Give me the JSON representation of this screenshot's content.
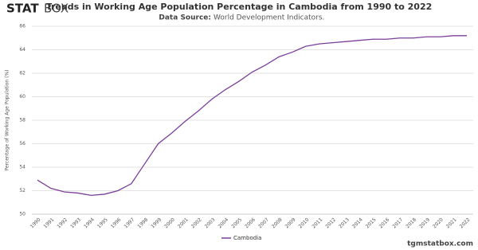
{
  "logo": {
    "bold": "STAT",
    "light": "BOX"
  },
  "footer": "tgmstatbox.com",
  "chart_data": {
    "type": "line",
    "title": "Trends in Working Age Population Percentage in Cambodia from 1990 to 2022",
    "subtitle_label": "Data Source:",
    "subtitle": "World Development Indicators.",
    "y_label": "Percentage of Working Age Population (%)",
    "categories": [
      "1990",
      "1991",
      "1992",
      "1993",
      "1994",
      "1995",
      "1996",
      "1997",
      "1998",
      "1999",
      "2000",
      "2001",
      "2002",
      "2003",
      "2004",
      "2005",
      "2006",
      "2007",
      "2008",
      "2009",
      "2010",
      "2011",
      "2012",
      "2013",
      "2014",
      "2015",
      "2016",
      "2017",
      "2018",
      "2019",
      "2020",
      "2021",
      "2022"
    ],
    "series": [
      {
        "name": "Cambodia",
        "color": "#7b3f98",
        "values": [
          52.9,
          52.2,
          51.9,
          51.8,
          51.6,
          51.7,
          52.0,
          52.6,
          54.3,
          56.0,
          56.9,
          57.9,
          58.8,
          59.8,
          60.6,
          61.3,
          62.1,
          62.7,
          63.4,
          63.8,
          64.3,
          64.5,
          64.6,
          64.7,
          64.8,
          64.9,
          64.9,
          65.0,
          65.0,
          65.1,
          65.1,
          65.2,
          65.2
        ]
      }
    ],
    "ylim": [
      50,
      66
    ],
    "yticks": [
      50,
      52,
      54,
      56,
      58,
      60,
      62,
      64,
      66
    ],
    "grid": true
  }
}
